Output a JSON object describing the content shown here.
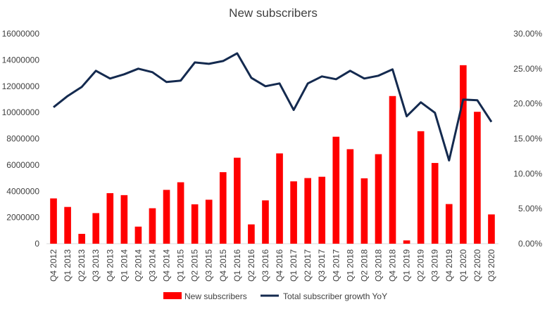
{
  "chart_data": {
    "type": "bar",
    "title": "New subscribers",
    "categories": [
      "Q4 2012",
      "Q1 2013",
      "Q2 2013",
      "Q3 2013",
      "Q4 2013",
      "Q1 2014",
      "Q2 2014",
      "Q3 2014",
      "Q4 2014",
      "Q1 2015",
      "Q2 2015",
      "Q3 2015",
      "Q4 2015",
      "Q1 2016",
      "Q2 2016",
      "Q3 2016",
      "Q4 2016",
      "Q1 2017",
      "Q2 2017",
      "Q3 2017",
      "Q4 2017",
      "Q1 2018",
      "Q2 2018",
      "Q3 2018",
      "Q4 2018",
      "Q1 2019",
      "Q2 2019",
      "Q3 2019",
      "Q4 2019",
      "Q1 2020",
      "Q2 2020",
      "Q3 2020"
    ],
    "series": [
      {
        "name": "New subscribers",
        "type": "bar",
        "axis": "left",
        "color": "#ff0000",
        "values": [
          3450000,
          2800000,
          750000,
          2330000,
          3850000,
          3700000,
          1300000,
          2700000,
          4100000,
          4680000,
          3000000,
          3350000,
          5450000,
          6550000,
          1470000,
          3300000,
          6880000,
          4750000,
          5000000,
          5100000,
          8150000,
          7200000,
          4980000,
          6820000,
          11250000,
          250000,
          8570000,
          6150000,
          3020000,
          13600000,
          10050000,
          2230000
        ]
      },
      {
        "name": "Total subscriber growth YoY",
        "type": "line",
        "axis": "right",
        "color": "#142a4f",
        "values": [
          0.195,
          0.211,
          0.224,
          0.247,
          0.236,
          0.242,
          0.25,
          0.245,
          0.231,
          0.233,
          0.259,
          0.257,
          0.261,
          0.272,
          0.237,
          0.225,
          0.229,
          0.191,
          0.229,
          0.239,
          0.235,
          0.247,
          0.236,
          0.24,
          0.249,
          0.182,
          0.202,
          0.187,
          0.119,
          0.206,
          0.205,
          0.174
        ]
      }
    ],
    "y_left": {
      "min": 0,
      "max": 16000000,
      "step": 2000000,
      "tick_labels": [
        "0",
        "2000000",
        "4000000",
        "6000000",
        "8000000",
        "10000000",
        "12000000",
        "14000000",
        "16000000"
      ]
    },
    "y_right": {
      "min": 0,
      "max": 0.3,
      "step": 0.05,
      "tick_labels": [
        "0.00%",
        "5.00%",
        "10.00%",
        "15.00%",
        "20.00%",
        "25.00%",
        "30.00%"
      ]
    },
    "grid": false,
    "legend": "bottom"
  }
}
